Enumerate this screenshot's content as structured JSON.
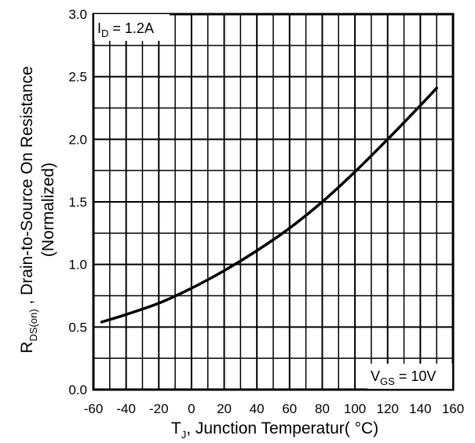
{
  "chart_data": {
    "type": "line",
    "title": "",
    "xlabel": {
      "main": "T",
      "sub": "J",
      "rest": ", Junction Temperatur( °C)"
    },
    "ylabel": {
      "main": "R",
      "sub": "DS(on)",
      "rest": " ,  Drain-to-Source On Resistance",
      "line2": "(Normalized)"
    },
    "xlim": [
      -60,
      160
    ],
    "ylim": [
      0.0,
      3.0
    ],
    "x_ticks": [
      "-60",
      "-40",
      "-20",
      "0",
      "20",
      "40",
      "60",
      "80",
      "100",
      "120",
      "140",
      "160"
    ],
    "y_ticks": [
      "0.0",
      "0.5",
      "1.0",
      "1.5",
      "2.0",
      "2.5",
      "3.0"
    ],
    "grid": true,
    "series": [
      {
        "color": "#000000",
        "x": [
          -55,
          -40,
          -20,
          0,
          20,
          40,
          60,
          80,
          100,
          120,
          140,
          150
        ],
        "y": [
          0.54,
          0.6,
          0.69,
          0.81,
          0.95,
          1.11,
          1.29,
          1.5,
          1.74,
          2.0,
          2.27,
          2.41
        ]
      }
    ],
    "annotations": [
      {
        "main": "I",
        "sub": "D",
        "rest": " = 1.2A",
        "position": "top-left"
      },
      {
        "main": "V",
        "sub": "GS",
        "rest": " = 10V",
        "position": "bottom-right"
      }
    ]
  }
}
